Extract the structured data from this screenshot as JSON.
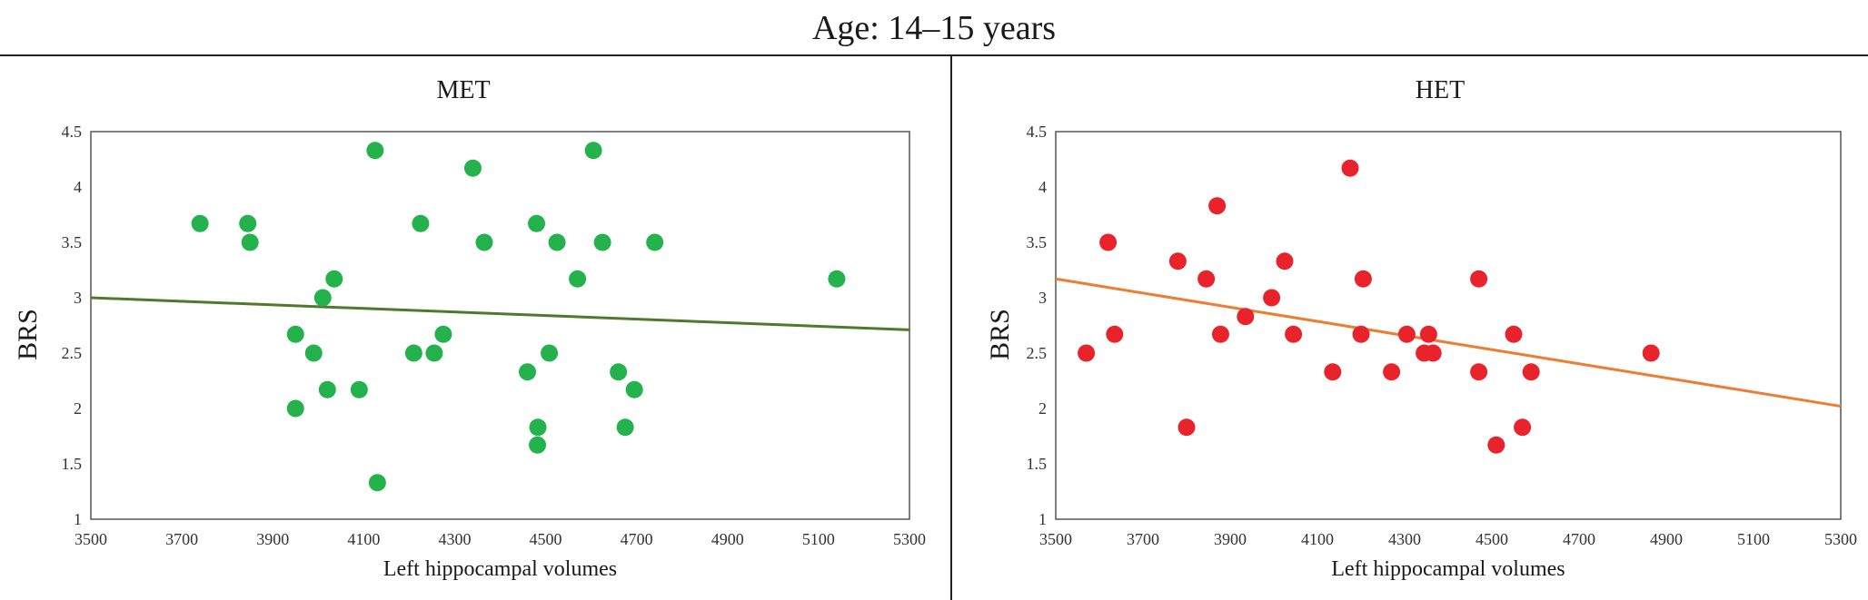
{
  "figure_title": "Age: 14–15 years",
  "chart_data": [
    {
      "type": "scatter",
      "title": "MET",
      "xlabel": "Left hippocampal volumes",
      "ylabel": "BRS",
      "xlim": [
        3500,
        5300
      ],
      "ylim": [
        1,
        4.5
      ],
      "x_ticks": [
        "3500",
        "3700",
        "3900",
        "4100",
        "4300",
        "4500",
        "4700",
        "4900",
        "5100",
        "5300"
      ],
      "y_ticks": [
        "1",
        "1.5",
        "2",
        "2.5",
        "3",
        "3.5",
        "4",
        "4.5"
      ],
      "marker_color": "#23b24b",
      "trendline_color": "#4f7a2c",
      "trendline": {
        "x": [
          3500,
          5300
        ],
        "y": [
          3.0,
          2.71
        ]
      },
      "points": [
        {
          "x": 3740,
          "y": 3.67
        },
        {
          "x": 3845,
          "y": 3.67
        },
        {
          "x": 3850,
          "y": 3.5
        },
        {
          "x": 3950,
          "y": 2.67
        },
        {
          "x": 3950,
          "y": 2.0
        },
        {
          "x": 3990,
          "y": 2.5
        },
        {
          "x": 4010,
          "y": 3.0
        },
        {
          "x": 4020,
          "y": 2.17
        },
        {
          "x": 4035,
          "y": 3.17
        },
        {
          "x": 4090,
          "y": 2.17
        },
        {
          "x": 4125,
          "y": 4.33
        },
        {
          "x": 4130,
          "y": 1.33
        },
        {
          "x": 4210,
          "y": 2.5
        },
        {
          "x": 4225,
          "y": 3.67
        },
        {
          "x": 4255,
          "y": 2.5
        },
        {
          "x": 4275,
          "y": 2.67
        },
        {
          "x": 4340,
          "y": 4.17
        },
        {
          "x": 4365,
          "y": 3.5
        },
        {
          "x": 4460,
          "y": 2.33
        },
        {
          "x": 4480,
          "y": 3.67
        },
        {
          "x": 4483,
          "y": 1.83
        },
        {
          "x": 4482,
          "y": 1.67
        },
        {
          "x": 4508,
          "y": 2.5
        },
        {
          "x": 4525,
          "y": 3.5
        },
        {
          "x": 4570,
          "y": 3.17
        },
        {
          "x": 4605,
          "y": 4.33
        },
        {
          "x": 4625,
          "y": 3.5
        },
        {
          "x": 4660,
          "y": 2.33
        },
        {
          "x": 4675,
          "y": 1.83
        },
        {
          "x": 4695,
          "y": 2.17
        },
        {
          "x": 4740,
          "y": 3.5
        },
        {
          "x": 5140,
          "y": 3.17
        }
      ]
    },
    {
      "type": "scatter",
      "title": "HET",
      "xlabel": "Left hippocampal volumes",
      "ylabel": "BRS",
      "xlim": [
        3500,
        5300
      ],
      "ylim": [
        1,
        4.5
      ],
      "x_ticks": [
        "3500",
        "3700",
        "3900",
        "4100",
        "4300",
        "4500",
        "4700",
        "4900",
        "5100",
        "5300"
      ],
      "y_ticks": [
        "1",
        "1.5",
        "2",
        "2.5",
        "3",
        "3.5",
        "4",
        "4.5"
      ],
      "marker_color": "#e8232b",
      "trendline_color": "#ed7d31",
      "trendline": {
        "x": [
          3500,
          5300
        ],
        "y": [
          3.17,
          2.02
        ]
      },
      "points": [
        {
          "x": 3570,
          "y": 2.5
        },
        {
          "x": 3620,
          "y": 3.5
        },
        {
          "x": 3635,
          "y": 2.67
        },
        {
          "x": 3780,
          "y": 3.33
        },
        {
          "x": 3800,
          "y": 1.83
        },
        {
          "x": 3845,
          "y": 3.17
        },
        {
          "x": 3870,
          "y": 3.83
        },
        {
          "x": 3878,
          "y": 2.67
        },
        {
          "x": 3935,
          "y": 2.83
        },
        {
          "x": 3995,
          "y": 3.0
        },
        {
          "x": 4025,
          "y": 3.33
        },
        {
          "x": 4045,
          "y": 2.67
        },
        {
          "x": 4135,
          "y": 2.33
        },
        {
          "x": 4175,
          "y": 4.17
        },
        {
          "x": 4200,
          "y": 2.67
        },
        {
          "x": 4205,
          "y": 3.17
        },
        {
          "x": 4270,
          "y": 2.33
        },
        {
          "x": 4305,
          "y": 2.67
        },
        {
          "x": 4345,
          "y": 2.5
        },
        {
          "x": 4355,
          "y": 2.67
        },
        {
          "x": 4365,
          "y": 2.5
        },
        {
          "x": 4470,
          "y": 2.33
        },
        {
          "x": 4470,
          "y": 3.17
        },
        {
          "x": 4510,
          "y": 1.67
        },
        {
          "x": 4550,
          "y": 2.67
        },
        {
          "x": 4570,
          "y": 1.83
        },
        {
          "x": 4590,
          "y": 2.33
        },
        {
          "x": 4865,
          "y": 2.5
        }
      ]
    }
  ]
}
